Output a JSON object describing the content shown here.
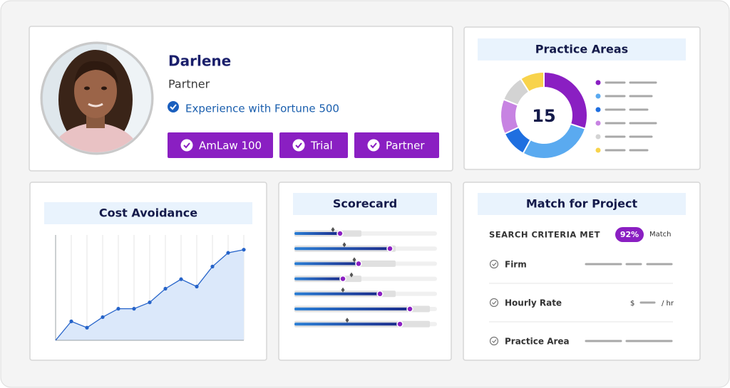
{
  "profile": {
    "name": "Darlene",
    "role": "Partner",
    "highlight": "Experience with Fortune 500",
    "badges": [
      "AmLaw 100",
      "Trial",
      "Partner"
    ]
  },
  "practice_areas": {
    "title": "Practice Areas",
    "total": 15,
    "segments": [
      {
        "color": "#8a1fc2",
        "value": 30
      },
      {
        "color": "#5aaaf0",
        "value": 28
      },
      {
        "color": "#1f6fe0",
        "value": 10
      },
      {
        "color": "#c783e2",
        "value": 13
      },
      {
        "color": "#d3d3d3",
        "value": 10
      },
      {
        "color": "#f8d34b",
        "value": 9
      }
    ]
  },
  "cost_avoidance": {
    "title": "Cost Avoidance",
    "values": [
      18,
      12,
      22,
      30,
      30,
      36,
      49,
      58,
      51,
      70,
      83,
      86
    ],
    "ylim": [
      0,
      100
    ],
    "color": "#2563c9"
  },
  "scorecard": {
    "title": "Scorecard",
    "xlim": [
      0,
      100
    ],
    "bars": [
      {
        "value": 32,
        "target": 27,
        "range": 47
      },
      {
        "value": 67,
        "target": 35,
        "range": 71
      },
      {
        "value": 45,
        "target": 42,
        "range": 71
      },
      {
        "value": 34,
        "target": 40,
        "range": 47
      },
      {
        "value": 60,
        "target": 34,
        "range": 71
      },
      {
        "value": 81,
        "target": null,
        "range": 95
      },
      {
        "value": 74,
        "target": 37,
        "range": 95
      }
    ]
  },
  "match": {
    "title": "Match for Project",
    "criteria_label": "SEARCH CRITERIA MET",
    "match_value": 92,
    "match_value_label": "92%",
    "match_label": "Match",
    "rows": [
      "Firm",
      "Hourly Rate",
      "Practice Area"
    ],
    "rate_currency": "$",
    "rate_unit": "/ hr"
  }
}
